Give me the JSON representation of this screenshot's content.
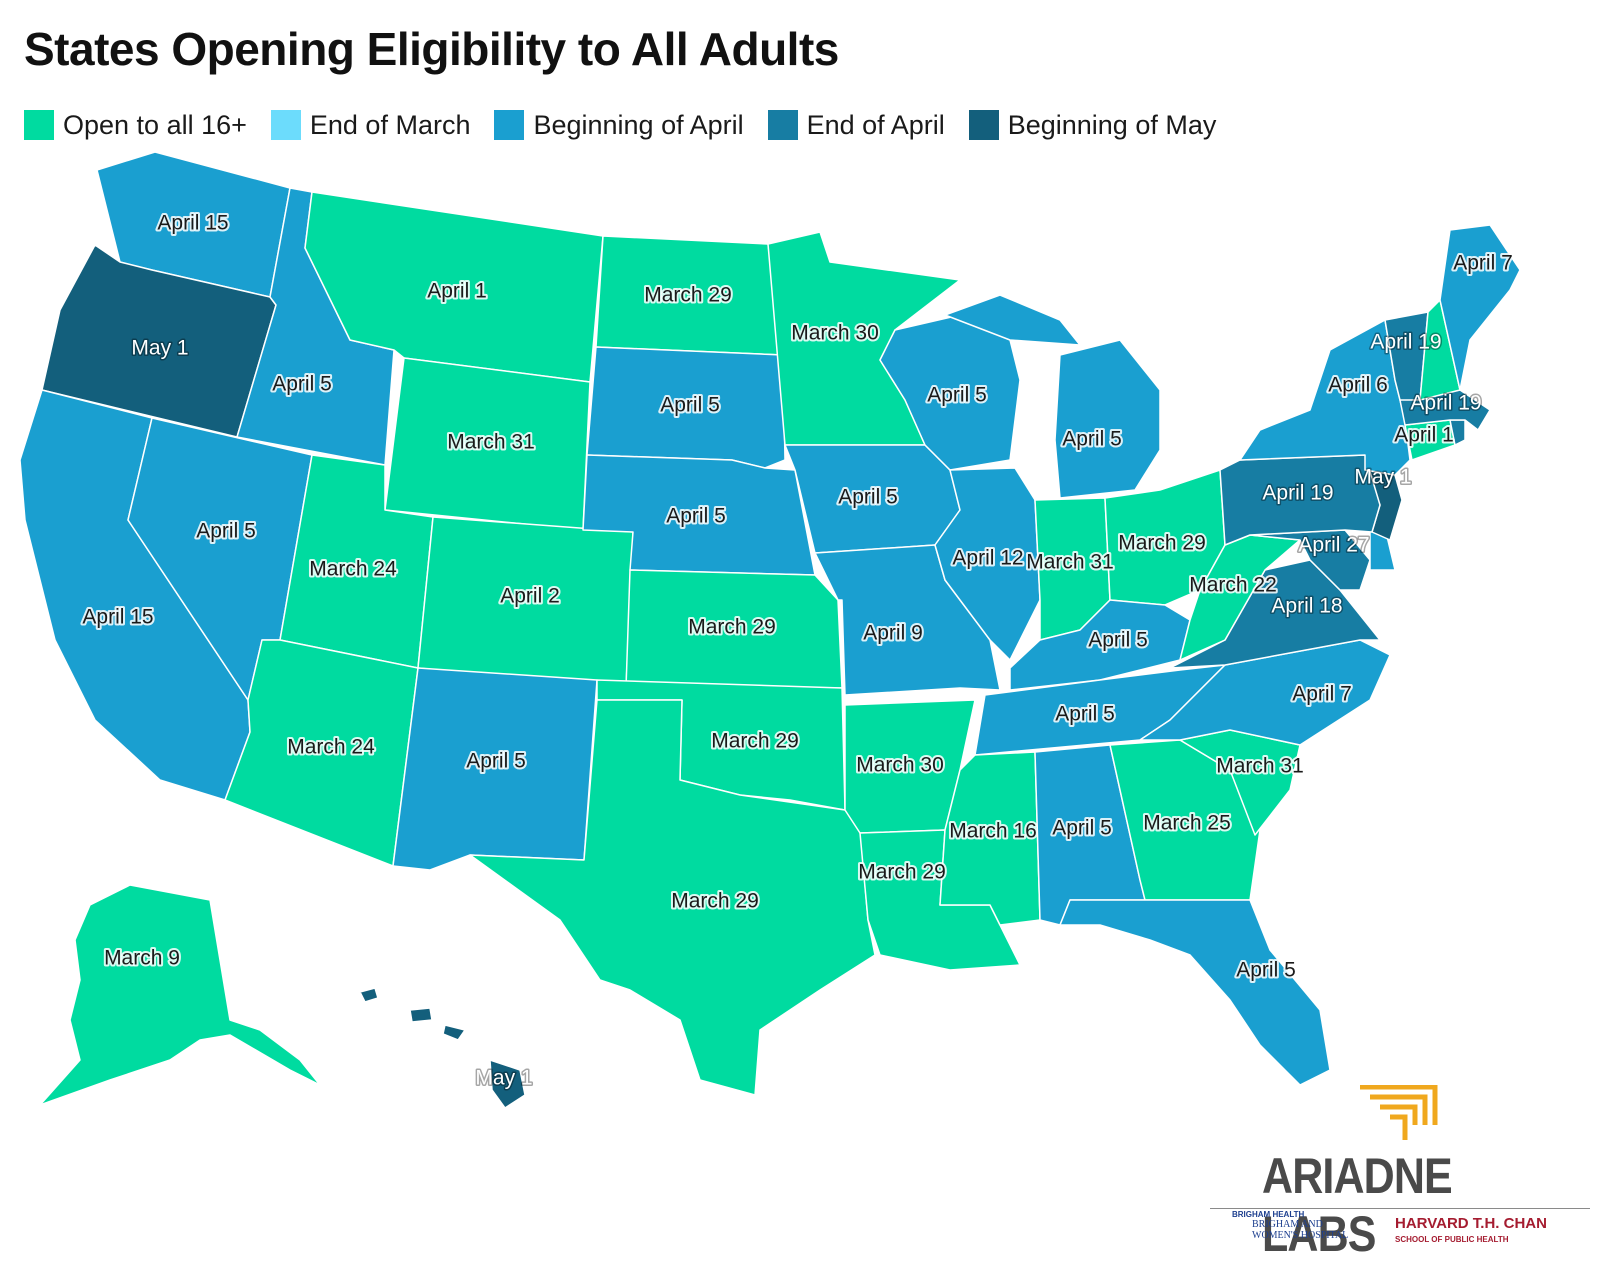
{
  "title": "States Opening Eligibility to All Adults",
  "legend": [
    {
      "label": "Open to all 16+",
      "color": "#00dba0"
    },
    {
      "label": "End of March",
      "color": "#6cdcfc"
    },
    {
      "label": "Beginning of April",
      "color": "#1a9fd0"
    },
    {
      "label": "End of April",
      "color": "#177da3"
    },
    {
      "label": "Beginning of May",
      "color": "#135f7c"
    }
  ],
  "states": {
    "WA": {
      "date": "April 15",
      "category": "Beginning of April"
    },
    "OR": {
      "date": "May 1",
      "category": "Beginning of May"
    },
    "CA": {
      "date": "April 15",
      "category": "Beginning of April"
    },
    "NV": {
      "date": "April 5",
      "category": "Beginning of April"
    },
    "ID": {
      "date": "April 5",
      "category": "Beginning of April"
    },
    "MT": {
      "date": "April 1",
      "category": "Open to all 16+"
    },
    "WY": {
      "date": "March 31",
      "category": "Open to all 16+"
    },
    "UT": {
      "date": "March 24",
      "category": "Open to all 16+"
    },
    "AZ": {
      "date": "March 24",
      "category": "Open to all 16+"
    },
    "CO": {
      "date": "April 2",
      "category": "Open to all 16+"
    },
    "NM": {
      "date": "April 5",
      "category": "Beginning of April"
    },
    "ND": {
      "date": "March 29",
      "category": "Open to all 16+"
    },
    "SD": {
      "date": "April 5",
      "category": "Beginning of April"
    },
    "NE": {
      "date": "April 5",
      "category": "Beginning of April"
    },
    "KS": {
      "date": "March 29",
      "category": "Open to all 16+"
    },
    "OK": {
      "date": "March 29",
      "category": "Open to all 16+"
    },
    "TX": {
      "date": "March 29",
      "category": "Open to all 16+"
    },
    "MN": {
      "date": "March 30",
      "category": "Open to all 16+"
    },
    "IA": {
      "date": "April 5",
      "category": "Beginning of April"
    },
    "MO": {
      "date": "April 9",
      "category": "Beginning of April"
    },
    "AR": {
      "date": "March 30",
      "category": "Open to all 16+"
    },
    "LA": {
      "date": "March 29",
      "category": "Open to all 16+"
    },
    "WI": {
      "date": "April 5",
      "category": "Beginning of April"
    },
    "IL": {
      "date": "April 12",
      "category": "Beginning of April"
    },
    "MI": {
      "date": "April 5",
      "category": "Beginning of April"
    },
    "IN": {
      "date": "March 31",
      "category": "Open to all 16+"
    },
    "OH": {
      "date": "March 29",
      "category": "Open to all 16+"
    },
    "KY": {
      "date": "April 5",
      "category": "Beginning of April"
    },
    "TN": {
      "date": "April 5",
      "category": "Beginning of April"
    },
    "MS": {
      "date": "March 16",
      "category": "Open to all 16+"
    },
    "AL": {
      "date": "April 5",
      "category": "Beginning of April"
    },
    "GA": {
      "date": "March 25",
      "category": "Open to all 16+"
    },
    "FL": {
      "date": "April 5",
      "category": "Beginning of April"
    },
    "SC": {
      "date": "March 31",
      "category": "Open to all 16+"
    },
    "NC": {
      "date": "April 7",
      "category": "Beginning of April"
    },
    "VA": {
      "date": "April 18",
      "category": "End of April"
    },
    "WV": {
      "date": "March 22",
      "category": "Open to all 16+"
    },
    "MD": {
      "date": "April 27",
      "category": "End of April"
    },
    "DE": {
      "date": "",
      "category": "Beginning of April"
    },
    "NJ": {
      "date": "",
      "category": "Beginning of May"
    },
    "PA": {
      "date": "April 19",
      "category": "End of April"
    },
    "NY": {
      "date": "April 6",
      "category": "Beginning of April"
    },
    "CT": {
      "date": "April 1",
      "category": "Open to all 16+"
    },
    "RI": {
      "date": "",
      "category": "End of April"
    },
    "MA": {
      "date": "April 19",
      "category": "End of April"
    },
    "VT": {
      "date": "April 19",
      "category": "End of April"
    },
    "NH": {
      "date": "",
      "category": "Open to all 16+"
    },
    "ME": {
      "date": "April 7",
      "category": "Beginning of April"
    },
    "AK": {
      "date": "March 9",
      "category": "Open to all 16+"
    },
    "HI": {
      "date": "May 1",
      "category": "Beginning of May"
    }
  },
  "extra_labels": {
    "NJ_label": "May 1"
  },
  "logo": {
    "wordmark": "ARIADNE LABS",
    "brigham_small": "BRIGHAM HEALTH",
    "brigham": "BRIGHAM AND WOMEN'S HOSPITAL",
    "harvard": "HARVARD T.H. CHAN",
    "harvard_sub": "SCHOOL OF PUBLIC HEALTH"
  }
}
